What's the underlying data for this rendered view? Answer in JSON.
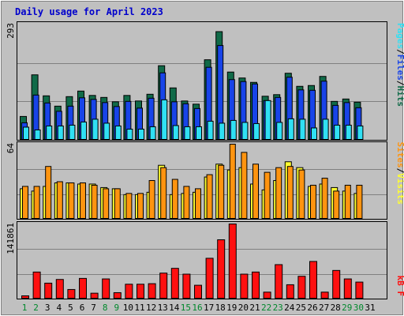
{
  "title": "Daily usage for April 2023",
  "colors": {
    "frame_bg": "#c0c0c0",
    "title_text": "#0000cc",
    "hits": "#106a48",
    "files": "#1844e8",
    "pages": "#30e0f4",
    "visits": "#ffff30",
    "sites": "#ff9410",
    "kbytes": "#ff1010",
    "weekday_text": "#000000",
    "weekend_text": "#00882c"
  },
  "chart_data": [
    {
      "type": "bar",
      "title": "Daily usage for April 2023",
      "panel": "hits-files-pages",
      "categories": [
        "1",
        "2",
        "3",
        "4",
        "5",
        "6",
        "7",
        "8",
        "9",
        "10",
        "11",
        "12",
        "13",
        "14",
        "15",
        "16",
        "17",
        "18",
        "19",
        "20",
        "21",
        "22",
        "23",
        "24",
        "25",
        "26",
        "27",
        "28",
        "29",
        "30",
        "31"
      ],
      "weekend_days": [
        "1",
        "2",
        "8",
        "9",
        "15",
        "16",
        "22",
        "23",
        "29",
        "30"
      ],
      "ymax_label": "293",
      "ylim": [
        0,
        293
      ],
      "legend": [
        "Pages",
        "Files",
        "Hits"
      ],
      "series": [
        {
          "name": "Hits",
          "values": [
            60,
            165,
            112,
            86,
            110,
            124,
            113,
            108,
            97,
            113,
            99,
            116,
            188,
            132,
            99,
            91,
            203,
            274,
            172,
            157,
            146,
            111,
            115,
            169,
            136,
            138,
            161,
            98,
            104,
            96,
            0
          ]
        },
        {
          "name": "Files",
          "values": [
            44,
            114,
            94,
            73,
            86,
            107,
            103,
            95,
            85,
            98,
            81,
            106,
            170,
            97,
            92,
            80,
            184,
            239,
            153,
            148,
            142,
            100,
            108,
            159,
            127,
            126,
            149,
            88,
            95,
            82,
            0
          ]
        },
        {
          "name": "Pages",
          "values": [
            33,
            26,
            36,
            36,
            38,
            46,
            53,
            43,
            36,
            28,
            28,
            34,
            102,
            37,
            34,
            34,
            48,
            43,
            50,
            45,
            42,
            100,
            45,
            54,
            53,
            31,
            53,
            38,
            38,
            36,
            0
          ]
        }
      ]
    },
    {
      "type": "bar",
      "panel": "visits-sites",
      "categories": [
        "1",
        "2",
        "3",
        "4",
        "5",
        "6",
        "7",
        "8",
        "9",
        "10",
        "11",
        "12",
        "13",
        "14",
        "15",
        "16",
        "17",
        "18",
        "19",
        "20",
        "21",
        "22",
        "23",
        "24",
        "25",
        "26",
        "27",
        "28",
        "29",
        "30",
        "31"
      ],
      "ymax_label": "64",
      "ylim": [
        0,
        64
      ],
      "legend": [
        "Sites",
        "Visits"
      ],
      "series": [
        {
          "name": "Visits",
          "values": [
            26,
            24,
            28,
            31,
            31,
            30,
            30,
            27,
            26,
            21,
            21,
            23,
            46,
            21,
            22,
            23,
            36,
            47,
            42,
            44,
            30,
            25,
            33,
            49,
            44,
            28,
            30,
            27,
            24,
            22,
            0
          ]
        },
        {
          "name": "Sites",
          "values": [
            28,
            28,
            45,
            32,
            31,
            31,
            29,
            26,
            26,
            22,
            22,
            33,
            44,
            34,
            28,
            26,
            38,
            46,
            64,
            57,
            47,
            40,
            44,
            45,
            42,
            29,
            35,
            24,
            29,
            29,
            0
          ]
        }
      ]
    },
    {
      "type": "bar",
      "panel": "kbytes",
      "categories": [
        "1",
        "2",
        "3",
        "4",
        "5",
        "6",
        "7",
        "8",
        "9",
        "10",
        "11",
        "12",
        "13",
        "14",
        "15",
        "16",
        "17",
        "18",
        "19",
        "20",
        "21",
        "22",
        "23",
        "24",
        "25",
        "26",
        "27",
        "28",
        "29",
        "30",
        "31"
      ],
      "ymax_label": "141861",
      "ylim": [
        0,
        141861
      ],
      "legend": [
        "kB F"
      ],
      "series": [
        {
          "name": "kB F",
          "values": [
            6000,
            51000,
            30000,
            37000,
            18000,
            39000,
            11000,
            38000,
            12000,
            28000,
            28000,
            29000,
            49000,
            58000,
            47000,
            26000,
            77000,
            112000,
            141861,
            47000,
            51000,
            13000,
            65000,
            27000,
            43000,
            71000,
            13000,
            54000,
            38000,
            32000,
            0
          ]
        }
      ]
    }
  ]
}
